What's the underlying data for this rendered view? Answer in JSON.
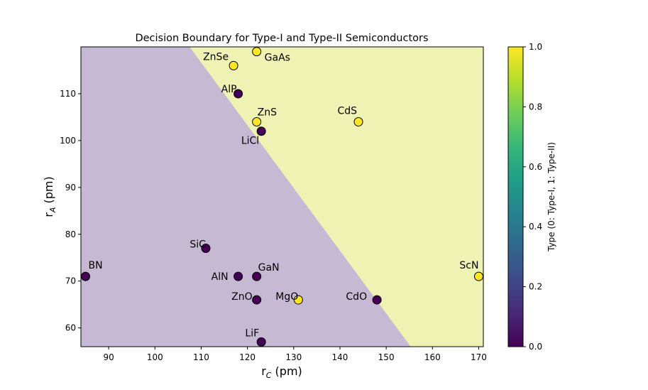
{
  "chart_data": {
    "type": "scatter",
    "title": "Decision Boundary for Type-I and Type-II Semiconductors",
    "xlabel_main": "r",
    "xlabel_sub": "C",
    "xlabel_unit": " (pm)",
    "ylabel_main": "r",
    "ylabel_sub": "A",
    "ylabel_unit": " (pm)",
    "xlim": [
      84,
      171
    ],
    "ylim": [
      56,
      120
    ],
    "xticks": [
      90,
      100,
      110,
      120,
      130,
      140,
      150,
      160,
      170
    ],
    "yticks": [
      60,
      70,
      80,
      90,
      100,
      110
    ],
    "decision_boundary": [
      [
        107.5,
        120
      ],
      [
        155.3,
        56
      ]
    ],
    "region_colors": {
      "type_I": "#c6b9d4",
      "type_II": "#eef3b4"
    },
    "class_colors": {
      "0": "#440154",
      "1": "#fde725"
    },
    "points": [
      {
        "label": "BN",
        "x": 85,
        "y": 71,
        "cls": 0,
        "anchor": "start",
        "dx": 4,
        "dy": -11
      },
      {
        "label": "SiC",
        "x": 111,
        "y": 77,
        "cls": 0,
        "anchor": "end",
        "dx": 0,
        "dy": -1
      },
      {
        "label": "AlN",
        "x": 118,
        "y": 71,
        "cls": 0,
        "anchor": "end",
        "dx": -14,
        "dy": 5
      },
      {
        "label": "GaN",
        "x": 122,
        "y": 71,
        "cls": 0,
        "anchor": "start",
        "dx": 2,
        "dy": -8
      },
      {
        "label": "ZnO",
        "x": 122,
        "y": 66,
        "cls": 0,
        "anchor": "end",
        "dx": -6,
        "dy": 0
      },
      {
        "label": "MgO",
        "x": 131,
        "y": 66,
        "cls": 1,
        "anchor": "end",
        "dx": 0,
        "dy": 0
      },
      {
        "label": "CdO",
        "x": 148,
        "y": 66,
        "cls": 0,
        "anchor": "end",
        "dx": -14,
        "dy": 0
      },
      {
        "label": "LiF",
        "x": 123,
        "y": 57,
        "cls": 0,
        "anchor": "end",
        "dx": -3,
        "dy": -8
      },
      {
        "label": "ScN",
        "x": 170,
        "y": 71,
        "cls": 1,
        "anchor": "end",
        "dx": 0,
        "dy": -11
      },
      {
        "label": "AlP",
        "x": 118,
        "y": 110,
        "cls": 0,
        "anchor": "end",
        "dx": -2,
        "dy": -2
      },
      {
        "label": "ZnS",
        "x": 122,
        "y": 104,
        "cls": 1,
        "anchor": "start",
        "dx": 1,
        "dy": -9
      },
      {
        "label": "LiCl",
        "x": 123,
        "y": 102,
        "cls": 0,
        "anchor": "end",
        "dx": -3,
        "dy": 18
      },
      {
        "label": "CdS",
        "x": 144,
        "y": 104,
        "cls": 1,
        "anchor": "end",
        "dx": -2,
        "dy": -11
      },
      {
        "label": "ZnSe",
        "x": 117,
        "y": 116,
        "cls": 1,
        "anchor": "end",
        "dx": -7,
        "dy": -8
      },
      {
        "label": "GaAs",
        "x": 122,
        "y": 119,
        "cls": 1,
        "anchor": "start",
        "dx": 11,
        "dy": 13
      }
    ],
    "colorbar": {
      "label": "Type (0: Type-I, 1: Type-II)",
      "ticks": [
        "0.0",
        "0.2",
        "0.4",
        "0.6",
        "0.8",
        "1.0"
      ],
      "tick_values": [
        0,
        0.2,
        0.4,
        0.6,
        0.8,
        1.0
      ],
      "colormap": "viridis",
      "stops": [
        "#440154",
        "#482878",
        "#3e4989",
        "#31688e",
        "#26828e",
        "#1f9e89",
        "#35b779",
        "#6ece58",
        "#b5de2b",
        "#fde725"
      ]
    }
  }
}
